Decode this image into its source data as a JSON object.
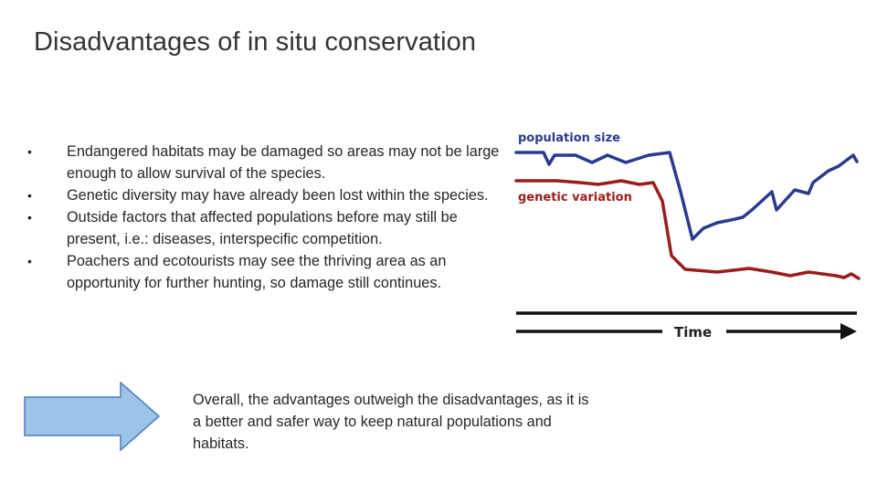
{
  "slide": {
    "title": "Disadvantages of in situ conservation"
  },
  "bullets": {
    "marker": "•",
    "items": [
      {
        "text": "Endangered habitats may be damaged so areas may  not be large enough to allow survival of the species."
      },
      {
        "text": "Genetic diversity may have already been lost within the species."
      },
      {
        "text": "Outside factors that affected populations before may still be present, i.e.: diseases, interspecific competition."
      },
      {
        "text": "Poachers and ecotourists may see the thriving area as an opportunity for further hunting, so damage still continues."
      }
    ]
  },
  "graph": {
    "label_population": "population size",
    "label_genetic": "genetic variation",
    "label_time": "Time",
    "colors": {
      "population": "#2b3a8f",
      "genetic": "#9a1c1c",
      "axis": "#111111"
    }
  },
  "conclusion": {
    "arrow_icon": "right-arrow-icon",
    "arrow_fill": "#9dc3e6",
    "arrow_stroke": "#4a7ebb",
    "text": "Overall, the advantages outweigh the disadvantages, as it is a better and safer way to keep natural populations and habitats."
  }
}
